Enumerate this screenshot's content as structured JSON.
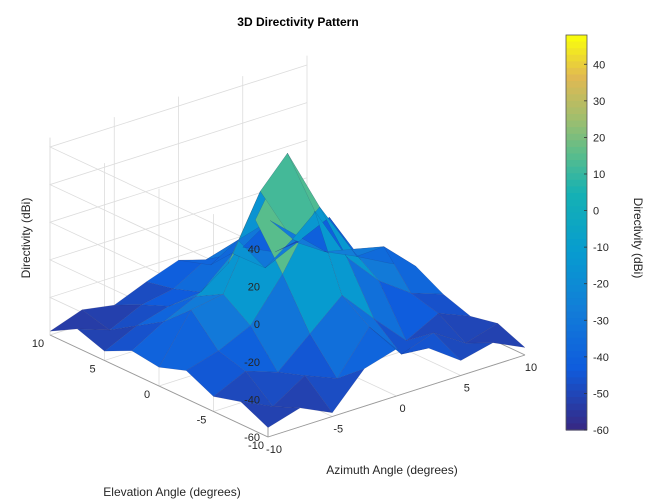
{
  "chart_data": {
    "type": "surface",
    "title": "3D Directivity Pattern",
    "xlabel": "Azimuth Angle (degrees)",
    "ylabel": "Elevation Angle (degrees)",
    "zlabel": "Directivity (dBi)",
    "colorbar_label": "Directivity (dBi)",
    "xlim": [
      -10,
      10
    ],
    "ylim": [
      -10,
      10
    ],
    "zlim": [
      -60,
      45
    ],
    "x_ticks": [
      -10,
      -5,
      0,
      5,
      10
    ],
    "y_ticks": [
      -10,
      -5,
      0,
      5,
      10
    ],
    "z_ticks": [
      -60,
      -40,
      -20,
      0,
      20,
      40
    ],
    "colorbar_ticks": [
      -60,
      -50,
      -40,
      -30,
      -20,
      -10,
      0,
      10,
      20,
      30,
      40
    ],
    "clim": [
      -60,
      48
    ],
    "colormap": "parula",
    "grid": true,
    "x": [
      -10,
      -7.5,
      -5,
      -2.5,
      0,
      2.5,
      5,
      7.5,
      10
    ],
    "y": [
      -10,
      -7.5,
      -5,
      -2.5,
      0,
      2.5,
      5,
      7.5,
      10
    ],
    "z": [
      [
        -55,
        -50,
        -58,
        -40,
        -35,
        -40,
        -52,
        -48,
        -56
      ],
      [
        -48,
        -56,
        -45,
        -52,
        -30,
        -50,
        -44,
        -55,
        -50
      ],
      [
        -52,
        -44,
        -50,
        -35,
        -20,
        -38,
        -55,
        -46,
        -53
      ],
      [
        -45,
        -40,
        -32,
        -10,
        18,
        -12,
        -30,
        -42,
        -48
      ],
      [
        -50,
        -25,
        -22,
        12,
        42,
        8,
        -20,
        -24,
        -40
      ],
      [
        -48,
        -38,
        -30,
        -18,
        15,
        -16,
        -28,
        -36,
        -45
      ],
      [
        -55,
        -47,
        -42,
        -40,
        -25,
        -38,
        -30,
        -22,
        -50
      ],
      [
        -50,
        -56,
        -48,
        -45,
        -35,
        -30,
        -25,
        -40,
        -55
      ],
      [
        -58,
        -52,
        -55,
        -48,
        -42,
        -50,
        -46,
        -54,
        -52
      ]
    ]
  }
}
